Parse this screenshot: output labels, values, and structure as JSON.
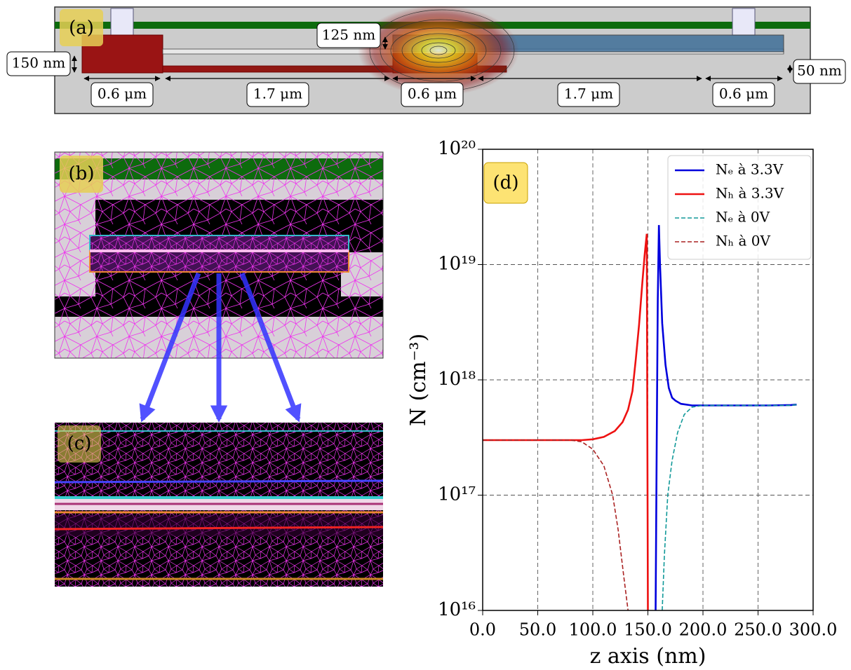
{
  "panels": {
    "a": {
      "label": "(a)",
      "annotations": [
        "125 nm",
        "150 nm",
        "50 nm",
        "0.6 μm",
        "1.7 μm",
        "0.6 μm",
        "1.7 μm",
        "0.6 μm"
      ]
    },
    "b": {
      "label": "(b)"
    },
    "c": {
      "label": "(c)"
    }
  },
  "chart_data": {
    "type": "line",
    "panel_label": "(d)",
    "xlabel": "z axis (nm)",
    "ylabel": "N (cm⁻³)",
    "xlim": [
      0,
      300
    ],
    "xticks": [
      {
        "value": 0,
        "label": "0.0"
      },
      {
        "value": 50,
        "label": "50.0"
      },
      {
        "value": 100,
        "label": "100.0"
      },
      {
        "value": 150,
        "label": "150.0"
      },
      {
        "value": 200,
        "label": "200.0"
      },
      {
        "value": 250,
        "label": "250.0"
      },
      {
        "value": 300,
        "label": "300.0"
      }
    ],
    "ylim": [
      1e+16,
      1e+20
    ],
    "log_y": true,
    "yticks": [
      {
        "value": 1e+16,
        "label": "10¹⁶"
      },
      {
        "value": 1e+17,
        "label": "10¹⁷"
      },
      {
        "value": 1e+18,
        "label": "10¹⁸"
      },
      {
        "value": 1e+19,
        "label": "10¹⁹"
      },
      {
        "value": 1e+20,
        "label": "10²⁰"
      }
    ],
    "grid": true,
    "legend": "upper right",
    "series": [
      {
        "name": "Nₑ à 3.3V",
        "color": "#0000dd",
        "linestyle": "solid",
        "x": [
          157,
          158,
          159,
          160,
          161,
          163,
          166,
          169,
          172,
          175,
          180,
          190,
          200,
          220,
          240,
          260,
          280,
          285
        ],
        "values": [
          1e+16,
          3e+17,
          5e+18,
          2.2e+19,
          1e+19,
          3.1e+18,
          1.35e+18,
          8.5e+17,
          7e+17,
          6.6e+17,
          6.2e+17,
          6e+17,
          6e+17,
          6e+17,
          6e+17,
          6e+17,
          6.05e+17,
          6.1e+17
        ]
      },
      {
        "name": "Nₕ à 3.3V",
        "color": "#ee1111",
        "linestyle": "solid",
        "x": [
          0,
          50,
          90,
          100,
          110,
          120,
          127,
          132,
          136,
          139,
          142,
          145,
          147,
          149,
          150
        ],
        "values": [
          3e+17,
          3e+17,
          3e+17,
          3.05e+17,
          3.2e+17,
          3.6e+17,
          4.3e+17,
          5.5e+17,
          8e+17,
          1.5e+18,
          3e+18,
          7e+18,
          1.2e+19,
          1.85e+19,
          1e+16
        ]
      },
      {
        "name": "Nₑ à 0V",
        "color": "#119999",
        "linestyle": "dashed",
        "x": [
          163,
          165,
          168,
          172,
          177,
          183,
          190,
          200,
          240,
          280,
          285
        ],
        "values": [
          1e+16,
          3e+16,
          1e+17,
          2e+17,
          3.5e+17,
          5e+17,
          5.8e+17,
          6e+17,
          6e+17,
          6e+17,
          6.1e+17
        ]
      },
      {
        "name": "Nₕ à 0V",
        "color": "#aa2222",
        "linestyle": "dashed",
        "x": [
          0,
          80,
          90,
          100,
          110,
          118,
          123,
          128,
          132
        ],
        "values": [
          3e+17,
          3e+17,
          2.9e+17,
          2.5e+17,
          1.8e+17,
          1e+17,
          5e+16,
          2e+16,
          1e+16
        ]
      }
    ]
  }
}
